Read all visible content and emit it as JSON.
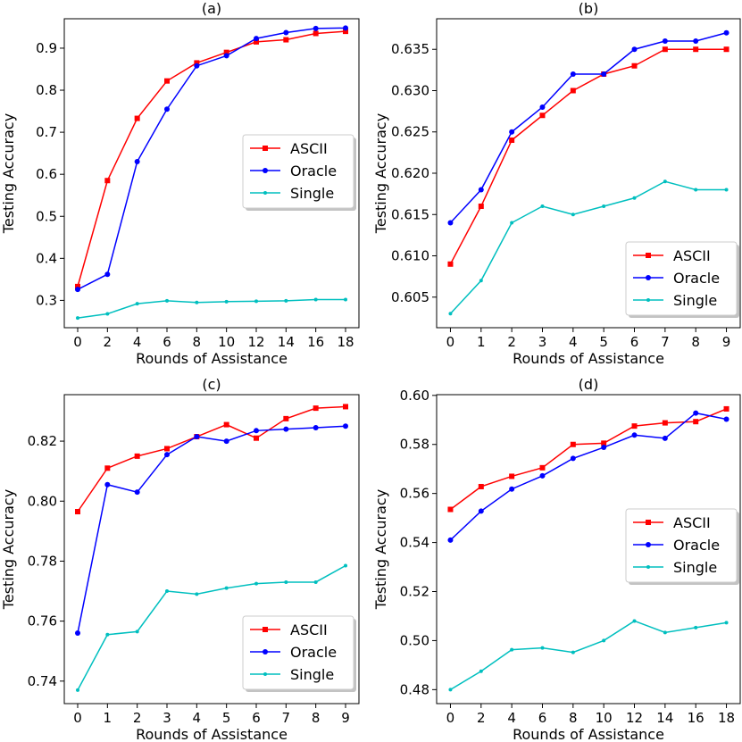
{
  "colors": {
    "ASCII": "#ff0000",
    "Oracle": "#0000ff",
    "Single": "#00bfbf"
  },
  "chart_data": [
    {
      "type": "line",
      "title": "(a)",
      "xlabel": "Rounds of Assistance",
      "ylabel": "Testing Accuracy",
      "x": [
        0,
        2,
        4,
        6,
        8,
        10,
        12,
        14,
        16,
        18
      ],
      "xticks": [
        "0",
        "2",
        "4",
        "6",
        "8",
        "10",
        "12",
        "14",
        "16",
        "18"
      ],
      "xlim": [
        -0.9,
        18.9
      ],
      "ylim": [
        0.235,
        0.97
      ],
      "yticks": [
        "0.3",
        "0.4",
        "0.5",
        "0.6",
        "0.7",
        "0.8",
        "0.9"
      ],
      "legend": "center-right",
      "series": [
        {
          "name": "ASCII",
          "marker": "square",
          "values": [
            0.333,
            0.585,
            0.733,
            0.822,
            0.865,
            0.89,
            0.915,
            0.92,
            0.935,
            0.94
          ]
        },
        {
          "name": "Oracle",
          "marker": "circle",
          "values": [
            0.326,
            0.362,
            0.63,
            0.755,
            0.858,
            0.882,
            0.923,
            0.937,
            0.947,
            0.948
          ]
        },
        {
          "name": "Single",
          "marker": "dot",
          "values": [
            0.258,
            0.268,
            0.292,
            0.299,
            0.295,
            0.297,
            0.298,
            0.299,
            0.302,
            0.302
          ]
        }
      ]
    },
    {
      "type": "line",
      "title": "(b)",
      "xlabel": "Rounds of Assistance",
      "ylabel": "Testing Accuracy",
      "x": [
        0,
        1,
        2,
        3,
        4,
        5,
        6,
        7,
        8,
        9
      ],
      "xticks": [
        "0",
        "1",
        "2",
        "3",
        "4",
        "5",
        "6",
        "7",
        "8",
        "9"
      ],
      "xlim": [
        -0.45,
        9.45
      ],
      "ylim": [
        0.6013,
        0.6387
      ],
      "yticks": [
        "0.605",
        "0.610",
        "0.615",
        "0.620",
        "0.625",
        "0.630",
        "0.635"
      ],
      "legend": "bottom-right",
      "series": [
        {
          "name": "ASCII",
          "marker": "square",
          "values": [
            0.609,
            0.616,
            0.624,
            0.627,
            0.63,
            0.632,
            0.633,
            0.635,
            0.635,
            0.635
          ]
        },
        {
          "name": "Oracle",
          "marker": "circle",
          "values": [
            0.614,
            0.618,
            0.625,
            0.628,
            0.632,
            0.632,
            0.635,
            0.636,
            0.636,
            0.637
          ]
        },
        {
          "name": "Single",
          "marker": "dot",
          "values": [
            0.603,
            0.607,
            0.614,
            0.616,
            0.615,
            0.616,
            0.617,
            0.619,
            0.618,
            0.618
          ]
        }
      ]
    },
    {
      "type": "line",
      "title": "(c)",
      "xlabel": "Rounds of Assistance",
      "ylabel": "Testing Accuracy",
      "x": [
        0,
        1,
        2,
        3,
        4,
        5,
        6,
        7,
        8,
        9
      ],
      "xticks": [
        "0",
        "1",
        "2",
        "3",
        "4",
        "5",
        "6",
        "7",
        "8",
        "9"
      ],
      "xlim": [
        -0.45,
        9.45
      ],
      "ylim": [
        0.7325,
        0.8355
      ],
      "yticks": [
        "0.74",
        "0.76",
        "0.78",
        "0.80",
        "0.82"
      ],
      "legend": "bottom-right",
      "series": [
        {
          "name": "ASCII",
          "marker": "square",
          "values": [
            0.7965,
            0.811,
            0.815,
            0.8175,
            0.8215,
            0.8255,
            0.821,
            0.8275,
            0.831,
            0.8315
          ]
        },
        {
          "name": "Oracle",
          "marker": "circle",
          "values": [
            0.756,
            0.8055,
            0.803,
            0.8155,
            0.8215,
            0.82,
            0.8235,
            0.824,
            0.8245,
            0.825
          ]
        },
        {
          "name": "Single",
          "marker": "dot",
          "values": [
            0.737,
            0.7555,
            0.7565,
            0.77,
            0.769,
            0.771,
            0.7725,
            0.773,
            0.773,
            0.7785
          ]
        }
      ]
    },
    {
      "type": "line",
      "title": "(d)",
      "xlabel": "Rounds of Assistance",
      "ylabel": "Testing Accuracy",
      "x": [
        0,
        2,
        4,
        6,
        8,
        10,
        12,
        14,
        16,
        18
      ],
      "xticks": [
        "0",
        "2",
        "4",
        "6",
        "8",
        "10",
        "12",
        "14",
        "16",
        "18"
      ],
      "xlim": [
        -0.9,
        18.9
      ],
      "ylim": [
        0.4743,
        0.6003
      ],
      "yticks": [
        "0.48",
        "0.50",
        "0.52",
        "0.54",
        "0.56",
        "0.58",
        "0.60"
      ],
      "legend": "center-right",
      "series": [
        {
          "name": "ASCII",
          "marker": "square",
          "values": [
            0.5535,
            0.5628,
            0.567,
            0.5705,
            0.58,
            0.5805,
            0.5875,
            0.5888,
            0.5893,
            0.5945
          ]
        },
        {
          "name": "Oracle",
          "marker": "circle",
          "values": [
            0.541,
            0.5528,
            0.5618,
            0.5672,
            0.5743,
            0.5788,
            0.5838,
            0.5825,
            0.5928,
            0.5903
          ]
        },
        {
          "name": "Single",
          "marker": "dot",
          "values": [
            0.48,
            0.4875,
            0.4963,
            0.497,
            0.4952,
            0.5,
            0.508,
            0.5033,
            0.5053,
            0.5073
          ]
        }
      ]
    }
  ]
}
